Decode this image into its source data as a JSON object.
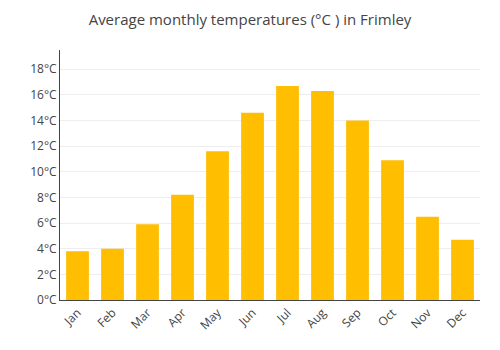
{
  "chart_data": {
    "type": "bar",
    "title": "Average monthly temperatures (°C ) in Frimley",
    "categories": [
      "Jan",
      "Feb",
      "Mar",
      "Apr",
      "May",
      "Jun",
      "Jul",
      "Aug",
      "Sep",
      "Oct",
      "Nov",
      "Dec"
    ],
    "values": [
      3.8,
      4.0,
      5.9,
      8.2,
      11.6,
      14.6,
      16.7,
      16.3,
      14.0,
      10.9,
      6.5,
      4.7
    ],
    "color": "#FFBE00",
    "ylim": [
      0,
      19.5
    ],
    "yticks": [
      {
        "value": 0,
        "label": "0°C"
      },
      {
        "value": 2,
        "label": "2°C"
      },
      {
        "value": 4,
        "label": "4°C"
      },
      {
        "value": 6,
        "label": "6°C"
      },
      {
        "value": 8,
        "label": "8°C"
      },
      {
        "value": 10,
        "label": "10°C"
      },
      {
        "value": 12,
        "label": "12°C"
      },
      {
        "value": 14,
        "label": "14°C"
      },
      {
        "value": 16,
        "label": "16°C"
      },
      {
        "value": 18,
        "label": "18°C"
      }
    ],
    "grid": true
  }
}
